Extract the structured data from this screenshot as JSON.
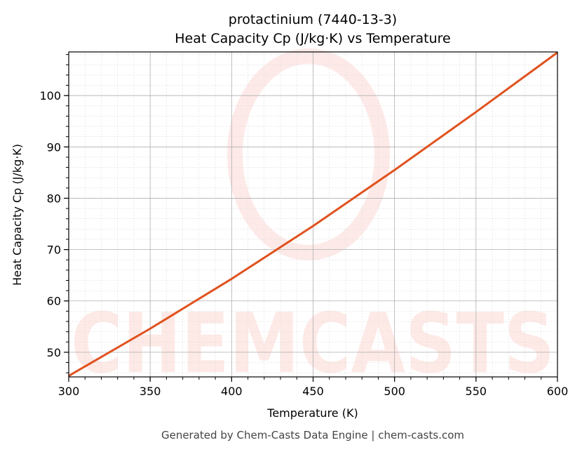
{
  "chart_data": {
    "type": "line",
    "title": "protactinium (7440-13-3)",
    "subtitle": "Heat Capacity Cp (J/kg·K) vs Temperature",
    "xlabel": "Temperature (K)",
    "ylabel": "Heat Capacity Cp (J/kg·K)",
    "xlim": [
      300,
      600
    ],
    "ylim": [
      45.2,
      108.5
    ],
    "xticks": [
      300,
      350,
      400,
      450,
      500,
      550,
      600
    ],
    "yticks": [
      50,
      60,
      70,
      80,
      90,
      100
    ],
    "grid": true,
    "series": [
      {
        "color": "#e0521f",
        "x": [
          300,
          350,
          400,
          450,
          500,
          550,
          600
        ],
        "y": [
          45.4,
          54.6,
          64.3,
          74.6,
          85.5,
          96.8,
          108.4
        ]
      }
    ]
  },
  "watermark": "CHEMCASTS",
  "footer": "Generated by Chem-Casts Data Engine | chem-casts.com"
}
